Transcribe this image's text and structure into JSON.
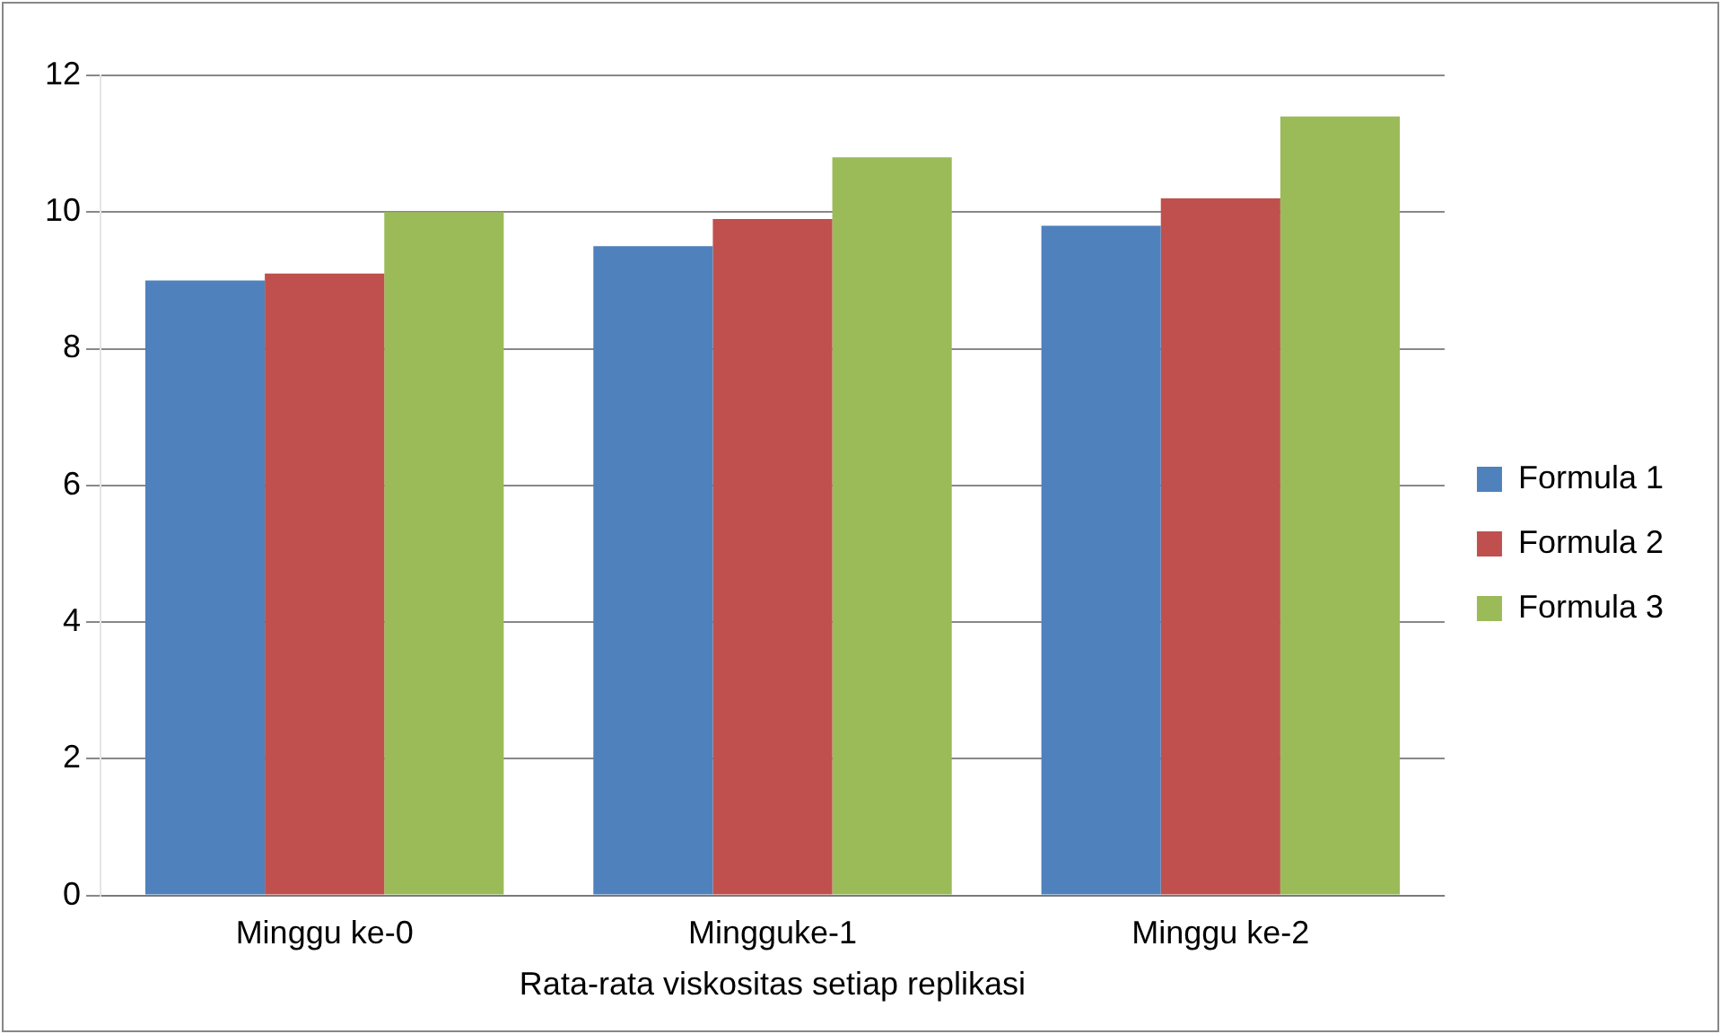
{
  "chart_data": {
    "type": "bar",
    "xlabel": "Rata-rata viskositas setiap replikasi",
    "categories": [
      "Minggu ke-0",
      "Mingguke-1",
      "Minggu ke-2"
    ],
    "series": [
      {
        "name": "Formula 1",
        "color": "#4f81bd",
        "values": [
          9.0,
          9.5,
          9.8
        ]
      },
      {
        "name": "Formula 2",
        "color": "#c0504d",
        "values": [
          9.1,
          9.9,
          10.2
        ]
      },
      {
        "name": "Formula 3",
        "color": "#9bbb59",
        "values": [
          10.0,
          10.8,
          11.4
        ]
      }
    ],
    "ylim": [
      0,
      12
    ],
    "yticks": [
      0,
      2,
      4,
      6,
      8,
      10,
      12
    ],
    "grid": "y",
    "legend": "right"
  }
}
